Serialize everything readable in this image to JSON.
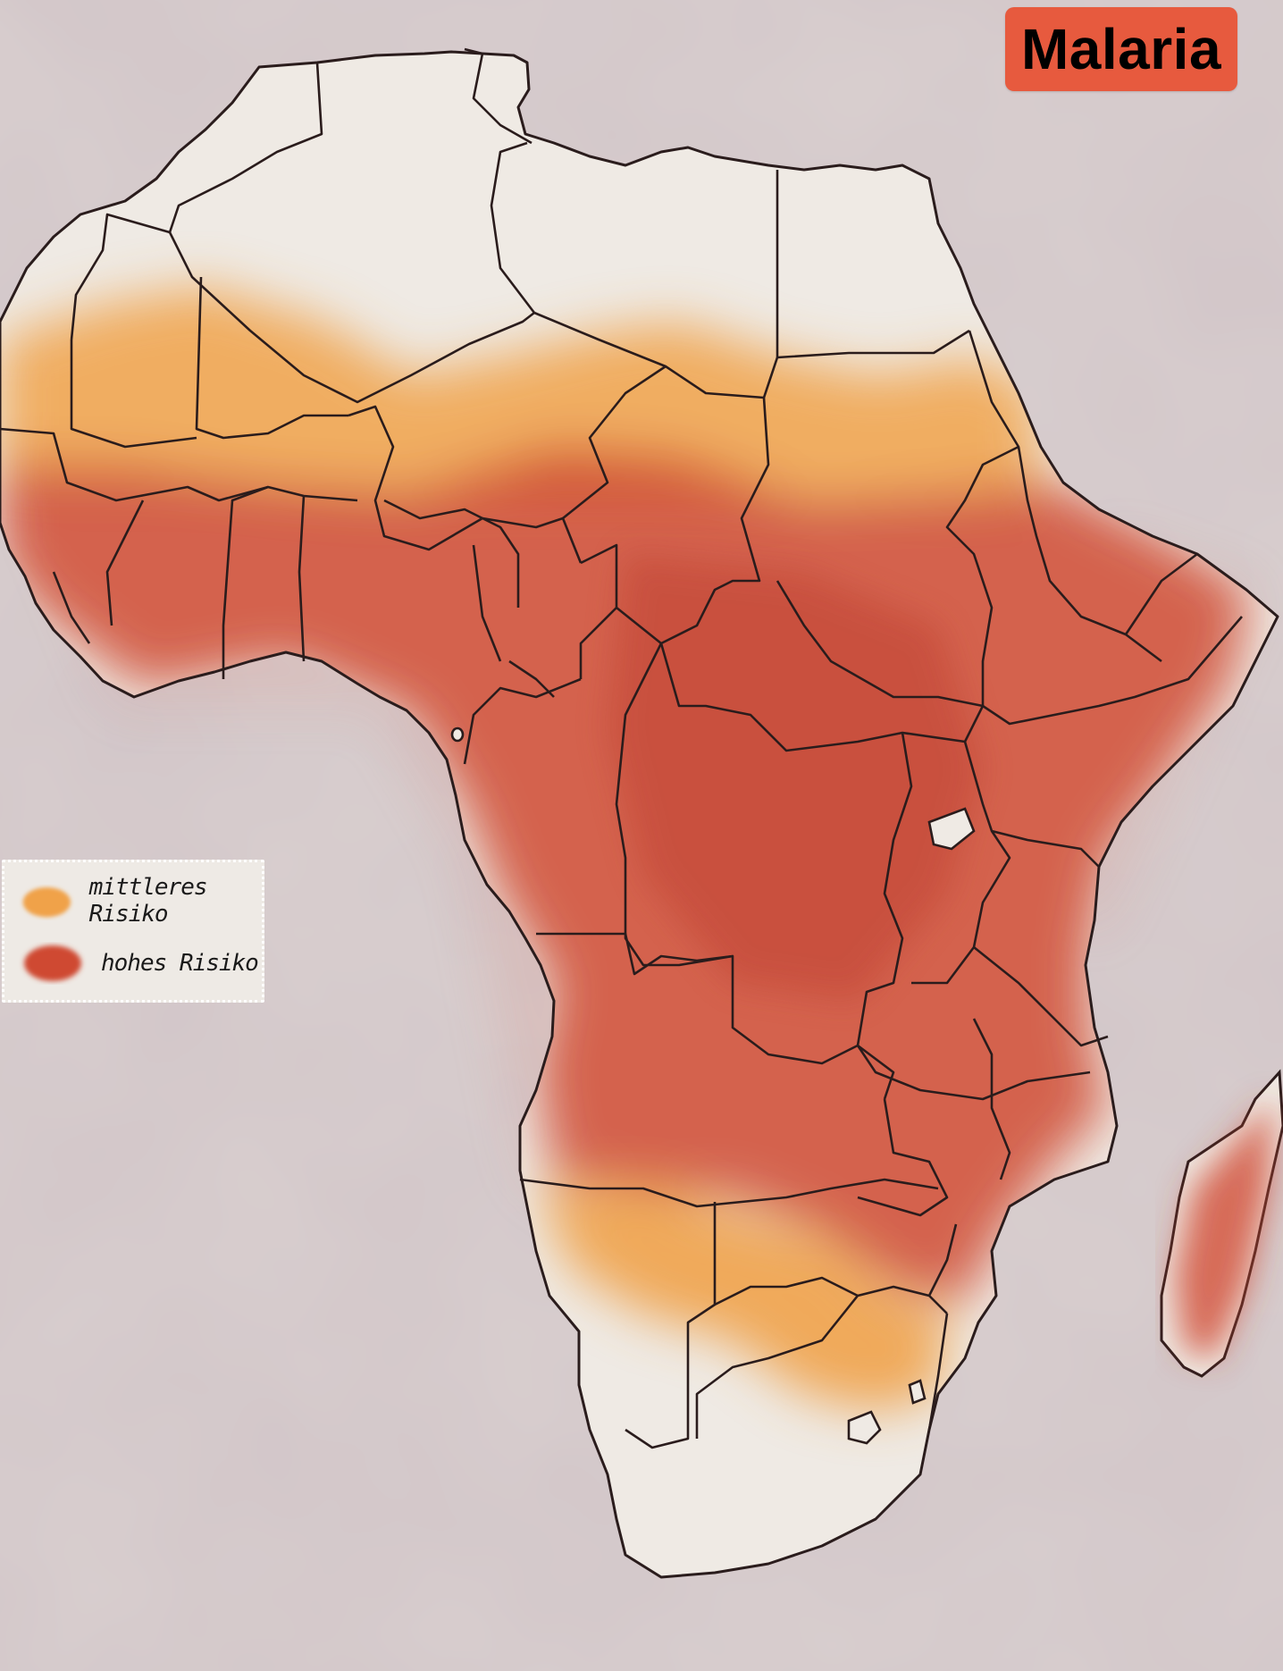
{
  "title": "Malaria",
  "legend": {
    "items": [
      {
        "label": "mittleres Risiko",
        "color": "#f0a24a"
      },
      {
        "label": "hohes Risiko",
        "color": "#cf4a32"
      }
    ]
  },
  "colors": {
    "background": "#d9cfcf",
    "land": "#efeae4",
    "medium_risk": "#f0a24a",
    "high_risk": "#cf4a32",
    "borders": "#2a1c1c",
    "title_badge": "#e75a3e"
  }
}
